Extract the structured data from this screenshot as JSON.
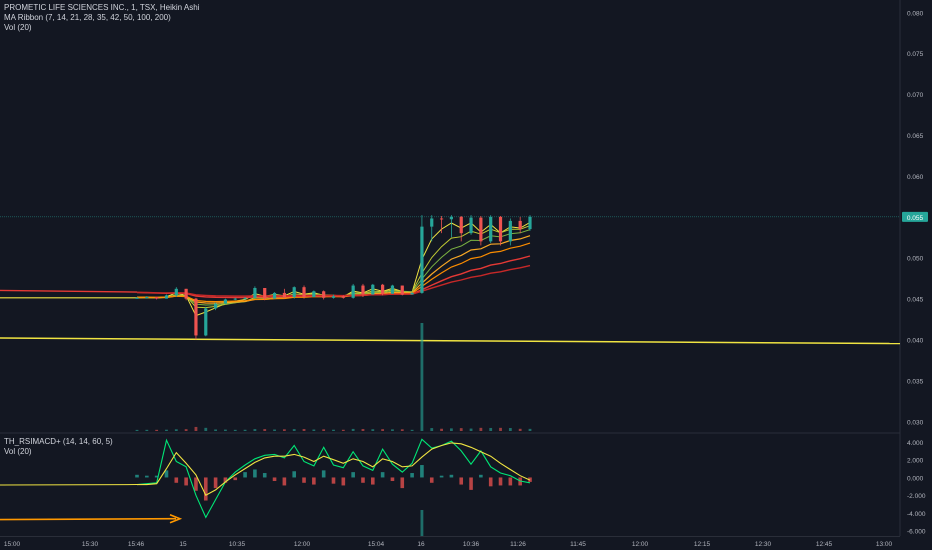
{
  "legend_main": {
    "title": "PROMETIC LIFE SCIENCES INC., 1, TSX, Heikin Ashi",
    "ma_ribbon": "MA Ribbon (7, 14, 21, 28, 35, 42, 50, 100, 200)",
    "vol": "Vol (20)"
  },
  "legend_sub": {
    "indicator": "TH_RSIMACD+ (14, 14, 60, 5)",
    "vol": "Vol (20)"
  },
  "colors": {
    "background": "#131722",
    "up": "#26a69a",
    "down": "#ef5350",
    "ma_fast": "#f0e442",
    "ma_slow": "#e53935",
    "signal_green": "#00e676",
    "price_tag": "#26a69a",
    "arrow": "#ff9800"
  },
  "chart_data": [
    {
      "type": "candlestick",
      "chart_style": "Heikin Ashi",
      "x_ticks": [
        "15:00",
        "15:30",
        "15:46",
        "15",
        "10:35",
        "12:00",
        "15:04",
        "16",
        "10:36",
        "11:26",
        "11:45",
        "12:00",
        "12:15",
        "12:30",
        "12:45",
        "13:00"
      ],
      "y_ticks": [
        "0.080",
        "0.075",
        "0.070",
        "0.065",
        "0.060",
        "0.055",
        "0.050",
        "0.045",
        "0.040",
        "0.035",
        "0.030"
      ],
      "ylim": [
        0.0287,
        0.0815
      ],
      "last_price": "0.055",
      "horizontal_line_level": 0.04,
      "ohlc": [
        [
          0.045,
          0.0452,
          0.045,
          0.0451
        ],
        [
          0.0451,
          0.0453,
          0.045,
          0.0452
        ],
        [
          0.0452,
          0.0452,
          0.0449,
          0.045
        ],
        [
          0.045,
          0.0455,
          0.045,
          0.0454
        ],
        [
          0.0454,
          0.0464,
          0.0452,
          0.0462
        ],
        [
          0.0462,
          0.0462,
          0.0448,
          0.045
        ],
        [
          0.045,
          0.0451,
          0.04,
          0.0405
        ],
        [
          0.0405,
          0.044,
          0.0404,
          0.0438
        ],
        [
          0.0438,
          0.0445,
          0.0436,
          0.0444
        ],
        [
          0.0444,
          0.045,
          0.0443,
          0.0449
        ],
        [
          0.0449,
          0.0451,
          0.0448,
          0.045
        ],
        [
          0.045,
          0.0452,
          0.0448,
          0.0451
        ],
        [
          0.0451,
          0.0465,
          0.045,
          0.0463
        ],
        [
          0.0463,
          0.0463,
          0.0448,
          0.045
        ],
        [
          0.045,
          0.0458,
          0.045,
          0.0457
        ],
        [
          0.0457,
          0.0462,
          0.045,
          0.0452
        ],
        [
          0.0452,
          0.0465,
          0.045,
          0.0464
        ],
        [
          0.0464,
          0.0466,
          0.045,
          0.0452
        ],
        [
          0.0452,
          0.046,
          0.0452,
          0.0459
        ],
        [
          0.0459,
          0.046,
          0.0449,
          0.0451
        ],
        [
          0.0451,
          0.0455,
          0.045,
          0.0453
        ],
        [
          0.0453,
          0.0454,
          0.045,
          0.0451
        ],
        [
          0.0451,
          0.0468,
          0.045,
          0.0466
        ],
        [
          0.0466,
          0.0468,
          0.0452,
          0.0455
        ],
        [
          0.0455,
          0.0468,
          0.0455,
          0.0467
        ],
        [
          0.0467,
          0.0468,
          0.0454,
          0.0456
        ],
        [
          0.0456,
          0.0467,
          0.0456,
          0.0466
        ],
        [
          0.0466,
          0.0466,
          0.0454,
          0.0455
        ],
        [
          0.0455,
          0.0458,
          0.0455,
          0.0457
        ],
        [
          0.0457,
          0.0552,
          0.0456,
          0.0538
        ],
        [
          0.0538,
          0.0552,
          0.052,
          0.0548
        ],
        [
          0.0548,
          0.0551,
          0.053,
          0.0547
        ],
        [
          0.0547,
          0.0552,
          0.0525,
          0.055
        ],
        [
          0.055,
          0.0551,
          0.052,
          0.053
        ],
        [
          0.053,
          0.0552,
          0.0528,
          0.0549
        ],
        [
          0.0549,
          0.0551,
          0.0515,
          0.052
        ],
        [
          0.052,
          0.0552,
          0.0518,
          0.055
        ],
        [
          0.055,
          0.0551,
          0.0515,
          0.052
        ],
        [
          0.052,
          0.0548,
          0.0515,
          0.0545
        ],
        [
          0.0545,
          0.055,
          0.053,
          0.0535
        ],
        [
          0.0535,
          0.0552,
          0.0533,
          0.055
        ]
      ]
    },
    {
      "type": "line",
      "title": "TH_RSIMACD+ (14, 14, 60, 5)",
      "y_ticks": [
        "4.000",
        "2.000",
        "0.000",
        "-2.000",
        "-4.000",
        "-6.000"
      ],
      "ylim": [
        -6.6,
        4.9
      ],
      "x": [
        0,
        1,
        2,
        3,
        4,
        5,
        6,
        7,
        8,
        9,
        10,
        11,
        12,
        13,
        14,
        15,
        16,
        17,
        18,
        19,
        20,
        21,
        22,
        23,
        24,
        25,
        26,
        27,
        28,
        29,
        30,
        31,
        32,
        33,
        34,
        35,
        36,
        37,
        38,
        39,
        40
      ],
      "series": [
        {
          "values": [
            -0.8,
            -0.7,
            -0.6,
            4.2,
            1.8,
            1.2,
            -2.0,
            -4.5,
            -2.5,
            -0.5,
            0.6,
            1.4,
            2.1,
            2.5,
            2.6,
            2.2,
            3.6,
            1.8,
            1.3,
            3.4,
            1.4,
            1.1,
            2.9,
            1.3,
            0.8,
            3.2,
            1.5,
            0.6,
            1.6,
            4.3,
            3.3,
            3.6,
            4.1,
            3.0,
            1.5,
            3.0,
            1.2,
            0.5,
            0.2,
            -0.4,
            -0.6
          ]
        },
        {
          "values": [
            -0.8,
            -0.8,
            -0.7,
            1.0,
            2.8,
            1.6,
            0.3,
            -2.0,
            -1.4,
            -0.5,
            0.3,
            1.0,
            1.7,
            2.2,
            2.4,
            2.4,
            2.6,
            2.3,
            1.8,
            2.4,
            2.0,
            1.6,
            2.1,
            1.8,
            1.2,
            2.1,
            1.8,
            1.2,
            1.3,
            2.3,
            3.2,
            3.6,
            3.9,
            3.8,
            3.4,
            2.9,
            2.4,
            1.6,
            0.9,
            0.2,
            -0.3
          ]
        }
      ],
      "histogram": [
        0.3,
        0.2,
        0.2,
        0.8,
        -0.6,
        -0.9,
        -1.5,
        -2.6,
        -1.2,
        -0.6,
        -0.3,
        0.6,
        0.9,
        0.5,
        -0.4,
        -0.9,
        0.7,
        -0.6,
        -0.8,
        0.8,
        -0.7,
        -0.9,
        0.6,
        -0.6,
        -0.8,
        0.6,
        -0.4,
        -1.2,
        0.5,
        1.4,
        -0.6,
        0.2,
        0.3,
        -0.8,
        -1.4,
        0.3,
        -1.0,
        -0.9,
        -0.9,
        -0.9,
        -0.5
      ]
    }
  ]
}
